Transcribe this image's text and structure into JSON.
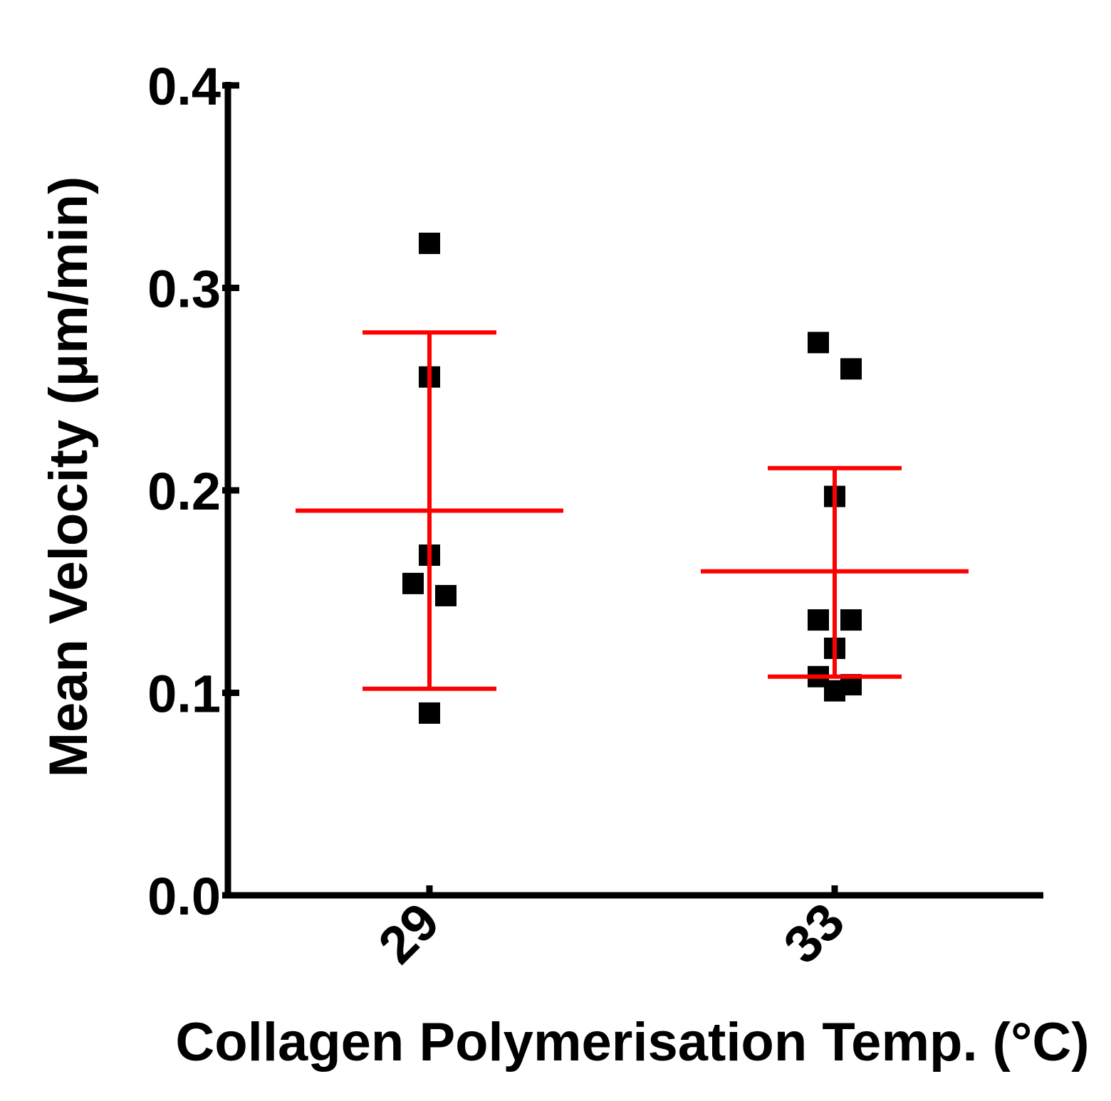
{
  "chart_data": {
    "type": "scatter",
    "xlabel": "Collagen Polymerisation Temp. (°C)",
    "ylabel": "Mean Velocity (μm/min)",
    "ylim": [
      0,
      0.4
    ],
    "yticks": [
      "0.0",
      "0.1",
      "0.2",
      "0.3",
      "0.4"
    ],
    "categories": [
      "29",
      "33"
    ],
    "grid": false,
    "legend": "none",
    "colors": {
      "points": "#000000",
      "error_bars": "#ff0000"
    },
    "series": [
      {
        "category": "29",
        "points": [
          {
            "y": 0.322,
            "j": 0
          },
          {
            "y": 0.256,
            "j": 0
          },
          {
            "y": 0.168,
            "j": 0
          },
          {
            "y": 0.154,
            "j": -1
          },
          {
            "y": 0.148,
            "j": 1
          },
          {
            "y": 0.09,
            "j": 0
          }
        ],
        "mean": 0.19,
        "upper": 0.278,
        "lower": 0.102
      },
      {
        "category": "33",
        "points": [
          {
            "y": 0.273,
            "j": -1
          },
          {
            "y": 0.26,
            "j": 1
          },
          {
            "y": 0.197,
            "j": 0
          },
          {
            "y": 0.136,
            "j": -1
          },
          {
            "y": 0.136,
            "j": 1
          },
          {
            "y": 0.122,
            "j": 0
          },
          {
            "y": 0.108,
            "j": -1
          },
          {
            "y": 0.101,
            "j": 0
          },
          {
            "y": 0.104,
            "j": 1
          }
        ],
        "mean": 0.16,
        "upper": 0.211,
        "lower": 0.108
      }
    ]
  }
}
